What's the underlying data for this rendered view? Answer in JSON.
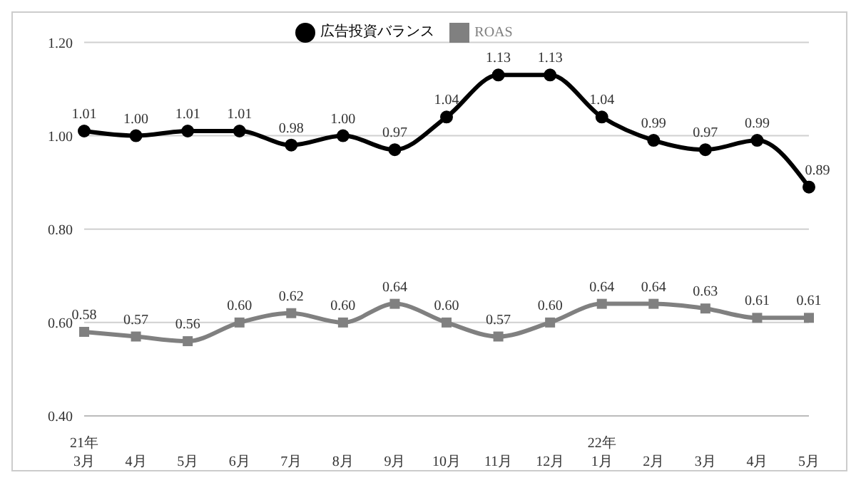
{
  "chart_data": {
    "type": "line",
    "categories": [
      "21年\n3月",
      "4月",
      "5月",
      "6月",
      "7月",
      "8月",
      "9月",
      "10月",
      "11月",
      "12月",
      "22年\n1月",
      "2月",
      "3月",
      "4月",
      "5月"
    ],
    "series": [
      {
        "name": "広告投資バランス",
        "color": "#000000",
        "marker": "circle",
        "values": [
          1.01,
          1.0,
          1.01,
          1.01,
          0.98,
          1.0,
          0.97,
          1.04,
          1.13,
          1.13,
          1.04,
          0.99,
          0.97,
          0.99,
          0.89
        ],
        "value_labels": [
          "1.01",
          "1.00",
          "1.01",
          "1.01",
          "0.98",
          "1.00",
          "0.97",
          "1.04",
          "1.13",
          "1.13",
          "1.04",
          "0.99",
          "0.97",
          "0.99",
          "0.89"
        ]
      },
      {
        "name": "ROAS",
        "color": "#808080",
        "marker": "square",
        "values": [
          0.58,
          0.57,
          0.56,
          0.6,
          0.62,
          0.6,
          0.64,
          0.6,
          0.57,
          0.6,
          0.64,
          0.64,
          0.63,
          0.61,
          0.61
        ],
        "value_labels": [
          "0.58",
          "0.57",
          "0.56",
          "0.60",
          "0.62",
          "0.60",
          "0.64",
          "0.60",
          "0.57",
          "0.60",
          "0.64",
          "0.64",
          "0.63",
          "0.61",
          "0.61"
        ]
      }
    ],
    "ylim": [
      0.4,
      1.2
    ],
    "yticks": [
      {
        "value": 0.4,
        "label": "0.40"
      },
      {
        "value": 0.6,
        "label": "0.60"
      },
      {
        "value": 0.8,
        "label": "0.80"
      },
      {
        "value": 1.0,
        "label": "1.00"
      },
      {
        "value": 1.2,
        "label": "1.20"
      }
    ],
    "grid": "y",
    "legend": "top",
    "line_style": "solid"
  }
}
